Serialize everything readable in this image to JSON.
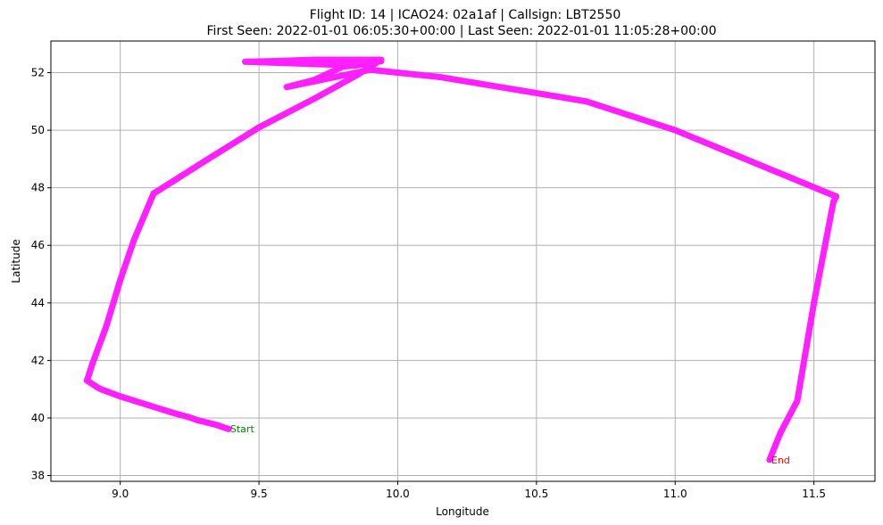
{
  "chart_data": {
    "type": "line",
    "title": "Flight ID: 14 | ICAO24: 02a1af | Callsign: LBT2550",
    "subtitle": "First Seen: 2022-01-01 06:05:30+00:00 | Last Seen: 2022-01-01 11:05:28+00:00",
    "xlabel": "Longitude",
    "ylabel": "Latitude",
    "xlim": [
      8.75,
      11.72
    ],
    "ylim": [
      37.8,
      53.1
    ],
    "xticks": [
      9.0,
      9.5,
      10.0,
      10.5,
      11.0,
      11.5
    ],
    "xtick_labels": [
      "9.0",
      "9.5",
      "10.0",
      "10.5",
      "11.0",
      "11.5"
    ],
    "yticks": [
      38,
      40,
      42,
      44,
      46,
      48,
      50,
      52
    ],
    "ytick_labels": [
      "38",
      "40",
      "42",
      "44",
      "46",
      "48",
      "50",
      "52"
    ],
    "grid": true,
    "line_color": "#ff1fff",
    "start_color": "#008000",
    "end_color": "#ff0000",
    "series": [
      {
        "x": [
          9.39,
          9.38,
          9.35,
          9.33,
          9.28,
          9.24,
          9.2,
          9.15,
          9.1,
          9.05,
          9.0,
          8.93,
          8.92,
          8.88,
          8.9,
          8.95,
          9.0,
          9.05,
          9.12,
          9.3,
          9.5,
          9.7,
          9.85,
          9.94,
          9.85,
          9.7,
          9.55,
          9.45,
          9.7,
          9.85,
          9.94,
          9.8,
          9.7,
          9.6,
          9.9,
          10.15,
          10.68,
          11.0,
          11.58,
          11.57,
          11.5,
          11.44,
          11.38,
          11.34
        ],
        "y": [
          39.62,
          39.65,
          39.75,
          39.8,
          39.92,
          40.05,
          40.15,
          40.3,
          40.45,
          40.6,
          40.75,
          41.0,
          41.05,
          41.3,
          41.9,
          43.2,
          44.8,
          46.2,
          47.8,
          48.9,
          50.1,
          51.1,
          51.9,
          52.45,
          52.45,
          52.45,
          52.4,
          52.38,
          52.3,
          52.25,
          52.4,
          52.2,
          51.75,
          51.5,
          52.1,
          51.85,
          51.0,
          50.0,
          47.7,
          47.5,
          44.0,
          40.6,
          39.5,
          38.55
        ]
      }
    ],
    "annotations": [
      {
        "label": "Start",
        "x": 9.39,
        "y": 39.62
      },
      {
        "label": "End",
        "x": 11.34,
        "y": 38.55
      }
    ]
  }
}
